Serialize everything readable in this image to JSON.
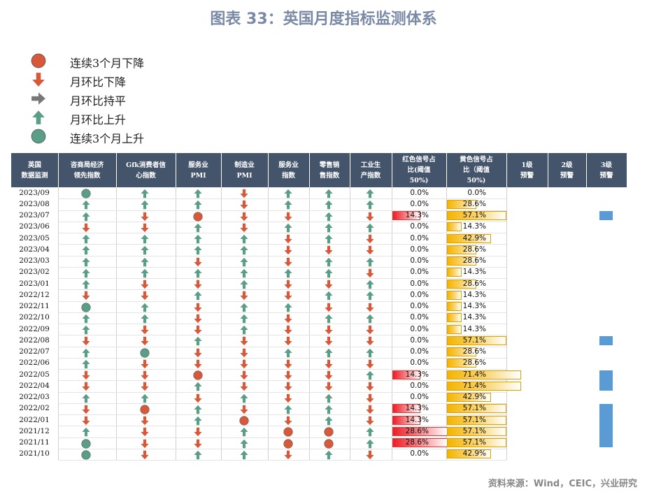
{
  "title": "图表 33：英国月度指标监测体系",
  "source": "资料来源：Wind，CEIC，兴业研究",
  "colors": {
    "red": "#d8583a",
    "green": "#5a9e88",
    "gray": "#777777",
    "header_bg": "#44546a",
    "blue": "#5b9bd5"
  },
  "legend": [
    {
      "icon": "red-circle-icon",
      "label": "连续3个月下降"
    },
    {
      "icon": "down-arrow-icon",
      "label": "月环比下降"
    },
    {
      "icon": "right-arrow-icon",
      "label": "月环比持平"
    },
    {
      "icon": "up-arrow-icon",
      "label": "月环比上升"
    },
    {
      "icon": "green-circle-icon",
      "label": "连续3个月上升"
    }
  ],
  "chart_data": {
    "type": "table",
    "columns": [
      "英国\n数据监测",
      "咨商局经济\n领先指数",
      "Gfk消费者信\n心指数",
      "服务业\nPMI",
      "制造业\nPMI",
      "服务业\n指数",
      "零售销\n售指数",
      "工业生\n产指数",
      "红色信号占\n比(阈值\n50%)",
      "黄色信号占\n比（阈值\n50%)",
      "1级\n预警",
      "2级\n预警",
      "3级\n预警"
    ],
    "icon_codes": {
      "U": "月环比上升",
      "D": "月环比下降",
      "F": "月环比持平",
      "G": "连续3个月上升",
      "R": "连续3个月下降"
    },
    "rows": [
      {
        "date": "2023/09",
        "signals": [
          "G",
          "U",
          "U",
          "D",
          "U",
          "U",
          "U"
        ],
        "red": 0.0,
        "yellow": 0.0,
        "warning3": false
      },
      {
        "date": "2023/08",
        "signals": [
          "U",
          "U",
          "U",
          "D",
          "U",
          "U",
          "U"
        ],
        "red": 0.0,
        "yellow": 28.6,
        "warning3": false
      },
      {
        "date": "2023/07",
        "signals": [
          "U",
          "D",
          "R",
          "D",
          "D",
          "U",
          "D"
        ],
        "red": 14.3,
        "yellow": 57.1,
        "warning3": true
      },
      {
        "date": "2023/06",
        "signals": [
          "D",
          "D",
          "U",
          "D",
          "U",
          "U",
          "U"
        ],
        "red": 0.0,
        "yellow": 14.3,
        "warning3": false
      },
      {
        "date": "2023/05",
        "signals": [
          "U",
          "U",
          "U",
          "U",
          "D",
          "U",
          "D"
        ],
        "red": 0.0,
        "yellow": 42.9,
        "warning3": false
      },
      {
        "date": "2023/04",
        "signals": [
          "U",
          "U",
          "U",
          "U",
          "D",
          "D",
          "D"
        ],
        "red": 0.0,
        "yellow": 28.6,
        "warning3": false
      },
      {
        "date": "2023/03",
        "signals": [
          "U",
          "U",
          "D",
          "U",
          "D",
          "U",
          "U"
        ],
        "red": 0.0,
        "yellow": 28.6,
        "warning3": false
      },
      {
        "date": "2023/02",
        "signals": [
          "U",
          "U",
          "U",
          "U",
          "U",
          "U",
          "D"
        ],
        "red": 0.0,
        "yellow": 14.3,
        "warning3": false
      },
      {
        "date": "2023/01",
        "signals": [
          "U",
          "D",
          "D",
          "U",
          "D",
          "D",
          "U"
        ],
        "red": 0.0,
        "yellow": 28.6,
        "warning3": false
      },
      {
        "date": "2022/12",
        "signals": [
          "D",
          "D",
          "U",
          "D",
          "D",
          "U",
          "U"
        ],
        "red": 0.0,
        "yellow": 14.3,
        "warning3": false
      },
      {
        "date": "2022/11",
        "signals": [
          "G",
          "U",
          "D",
          "U",
          "U",
          "D",
          "D"
        ],
        "red": 0.0,
        "yellow": 14.3,
        "warning3": false
      },
      {
        "date": "2022/10",
        "signals": [
          "U",
          "U",
          "D",
          "U",
          "D",
          "U",
          "U"
        ],
        "red": 0.0,
        "yellow": 14.3,
        "warning3": false
      },
      {
        "date": "2022/09",
        "signals": [
          "U",
          "D",
          "D",
          "U",
          "D",
          "D",
          "D"
        ],
        "red": 0.0,
        "yellow": 14.3,
        "warning3": false
      },
      {
        "date": "2022/08",
        "signals": [
          "D",
          "D",
          "U",
          "D",
          "D",
          "D",
          "D"
        ],
        "red": 0.0,
        "yellow": 57.1,
        "warning3": true
      },
      {
        "date": "2022/07",
        "signals": [
          "U",
          "G",
          "D",
          "D",
          "U",
          "U",
          "U"
        ],
        "red": 0.0,
        "yellow": 28.6,
        "warning3": false
      },
      {
        "date": "2022/06",
        "signals": [
          "U",
          "D",
          "D",
          "D",
          "D",
          "D",
          "D"
        ],
        "red": 0.0,
        "yellow": 28.6,
        "warning3": false
      },
      {
        "date": "2022/05",
        "signals": [
          "D",
          "D",
          "R",
          "D",
          "D",
          "D",
          "U"
        ],
        "red": 14.3,
        "yellow": 71.4,
        "warning3": true
      },
      {
        "date": "2022/04",
        "signals": [
          "D",
          "D",
          "U",
          "D",
          "D",
          "D",
          "D"
        ],
        "red": 0.0,
        "yellow": 71.4,
        "warning3": true
      },
      {
        "date": "2022/03",
        "signals": [
          "U",
          "U",
          "D",
          "U",
          "D",
          "U",
          "D"
        ],
        "red": 0.0,
        "yellow": 42.9,
        "warning3": false
      },
      {
        "date": "2022/02",
        "signals": [
          "D",
          "R",
          "U",
          "D",
          "U",
          "U",
          "D"
        ],
        "red": 14.3,
        "yellow": 57.1,
        "warning3": true
      },
      {
        "date": "2022/01",
        "signals": [
          "D",
          "D",
          "U",
          "R",
          "D",
          "U",
          "D"
        ],
        "red": 14.3,
        "yellow": 57.1,
        "warning3": true
      },
      {
        "date": "2021/12",
        "signals": [
          "U",
          "D",
          "D",
          "U",
          "R",
          "R",
          "U"
        ],
        "red": 28.6,
        "yellow": 57.1,
        "warning3": true
      },
      {
        "date": "2021/11",
        "signals": [
          "G",
          "D",
          "D",
          "U",
          "R",
          "R",
          "U"
        ],
        "red": 28.6,
        "yellow": 57.1,
        "warning3": true
      },
      {
        "date": "2021/10",
        "signals": [
          "G",
          "D",
          "U",
          "U",
          "D",
          "U",
          "D"
        ],
        "red": 0.0,
        "yellow": 42.9,
        "warning3": false
      }
    ]
  }
}
